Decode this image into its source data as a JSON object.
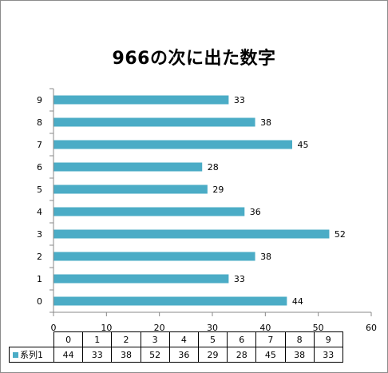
{
  "chart_data": {
    "type": "bar",
    "orientation": "horizontal",
    "title": "966の次に出た数字",
    "categories": [
      "0",
      "1",
      "2",
      "3",
      "4",
      "5",
      "6",
      "7",
      "8",
      "9"
    ],
    "series": [
      {
        "name": "系列1",
        "values": [
          44,
          33,
          38,
          52,
          36,
          29,
          28,
          45,
          38,
          33
        ],
        "color": "#4bacc6"
      }
    ],
    "xlim": [
      0,
      60
    ],
    "x_ticks": [
      "0",
      "10",
      "20",
      "30",
      "40",
      "50",
      "60"
    ],
    "data_labels": true,
    "grid": false,
    "legend": "data-table"
  }
}
